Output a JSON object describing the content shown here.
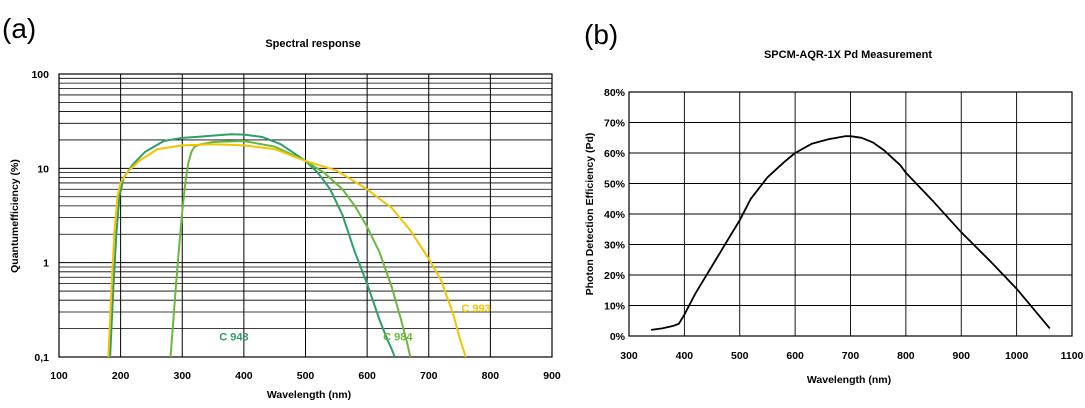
{
  "panels": [
    "(a)",
    "(b)"
  ],
  "chart_data": [
    {
      "type": "line",
      "title": "Spectral response",
      "xlabel": "Wavelength (nm)",
      "ylabel": "Quantumefficiency (%)",
      "xlim": [
        100,
        900
      ],
      "ylim": [
        0.1,
        100
      ],
      "yscale": "log",
      "xticks": [
        "100",
        "200",
        "300",
        "400",
        "500",
        "600",
        "700",
        "800",
        "900"
      ],
      "yticks": [
        {
          "value": 0.1,
          "label": "0,1"
        },
        {
          "value": 1,
          "label": "1"
        },
        {
          "value": 10,
          "label": "10"
        },
        {
          "value": 100,
          "label": "100"
        }
      ],
      "grid": true,
      "series": [
        {
          "name": "C 943",
          "color": "#2e9e6a",
          "label_at": [
            360,
            0.15
          ],
          "x": [
            183,
            188,
            193,
            198,
            205,
            220,
            240,
            270,
            300,
            330,
            360,
            380,
            400,
            430,
            460,
            500,
            520,
            540,
            560,
            580,
            600,
            620,
            630,
            640,
            645
          ],
          "y": [
            0.1,
            0.5,
            2,
            5,
            8,
            11,
            15,
            19.5,
            21,
            21.7,
            22.5,
            23,
            22.8,
            21.5,
            18,
            12,
            9,
            6,
            3.2,
            1.3,
            0.6,
            0.25,
            0.17,
            0.12,
            0.1
          ]
        },
        {
          "name": "C 984",
          "color": "#6ab83e",
          "label_at": [
            626,
            0.15
          ],
          "x": [
            281,
            285,
            290,
            295,
            300,
            305,
            310,
            315,
            320,
            330,
            350,
            400,
            450,
            500,
            530,
            560,
            580,
            600,
            620,
            640,
            655,
            665,
            670
          ],
          "y": [
            0.1,
            0.22,
            0.6,
            1.5,
            3.5,
            7,
            11.5,
            15,
            17,
            18,
            19,
            19.5,
            17,
            12,
            9,
            6,
            4,
            2.4,
            1.3,
            0.55,
            0.25,
            0.14,
            0.1
          ]
        },
        {
          "name": "C 993",
          "color": "#f5c400",
          "label_at": [
            753,
            0.3
          ],
          "x": [
            180,
            183,
            186,
            190,
            195,
            200,
            210,
            230,
            260,
            300,
            350,
            400,
            450,
            500,
            550,
            600,
            640,
            670,
            700,
            720,
            740,
            750,
            760
          ],
          "y": [
            0.1,
            0.25,
            0.7,
            2.2,
            5,
            7,
            9,
            12,
            16,
            17.5,
            18,
            17.5,
            16,
            12,
            9.5,
            6,
            3.8,
            2.2,
            1.1,
            0.65,
            0.28,
            0.16,
            0.1
          ]
        }
      ]
    },
    {
      "type": "line",
      "title": "SPCM-AQR-1X Pd Measurement",
      "xlabel": "Wavelength (nm)",
      "ylabel": "Photon Detection Efficiency  (Pd)",
      "xlim": [
        300,
        1100
      ],
      "ylim": [
        0,
        80
      ],
      "xticks": [
        "300",
        "400",
        "500",
        "600",
        "700",
        "800",
        "900",
        "1000",
        "1100"
      ],
      "yticks": [
        "0%",
        "10%",
        "20%",
        "30%",
        "40%",
        "50%",
        "60%",
        "70%",
        "80%"
      ],
      "grid": true,
      "series": [
        {
          "name": "",
          "color": "#000000",
          "x": [
            340,
            360,
            380,
            390,
            400,
            420,
            450,
            480,
            500,
            520,
            550,
            580,
            600,
            630,
            660,
            690,
            700,
            720,
            740,
            760,
            790,
            800,
            850,
            900,
            950,
            1000,
            1030,
            1060
          ],
          "y": [
            2,
            2.5,
            3.3,
            4,
            7,
            14,
            23,
            32,
            38,
            45,
            52,
            57,
            60,
            63,
            64.5,
            65.5,
            65.5,
            65,
            63.5,
            61,
            56,
            53.5,
            44,
            34,
            25,
            15.5,
            9,
            2.5
          ]
        }
      ]
    }
  ]
}
